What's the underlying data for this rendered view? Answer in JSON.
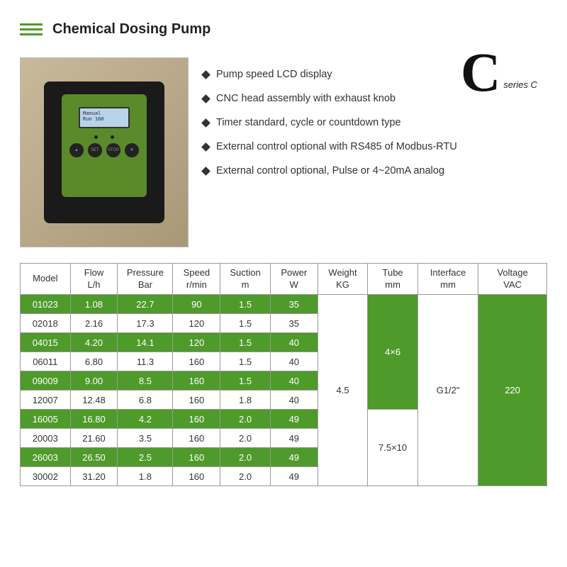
{
  "accentColor": "#4e9a2a",
  "header": {
    "title": "Chemical Dosing Pump"
  },
  "pump": {
    "lcd_line1": "Manual",
    "lcd_line2": "Run 160"
  },
  "series": {
    "letter": "C",
    "label": "series C"
  },
  "features": [
    "Pump speed LCD display",
    "CNC head assembly with exhaust knob",
    "Timer  standard, cycle or countdown type",
    "External control optional with RS485 of Modbus-RTU",
    "External control optional, Pulse or 4~20mA analog"
  ],
  "table": {
    "columns": [
      {
        "l1": "Model",
        "l2": ""
      },
      {
        "l1": "Flow",
        "l2": "L/h"
      },
      {
        "l1": "Pressure",
        "l2": "Bar"
      },
      {
        "l1": "Speed",
        "l2": "r/min"
      },
      {
        "l1": "Suction",
        "l2": "m"
      },
      {
        "l1": "Power",
        "l2": "W"
      },
      {
        "l1": "Weight",
        "l2": "KG"
      },
      {
        "l1": "Tube",
        "l2": "mm"
      },
      {
        "l1": "Interface",
        "l2": "mm"
      },
      {
        "l1": "Voltage",
        "l2": "VAC"
      }
    ],
    "col_widths": [
      "9.5%",
      "9%",
      "10.5%",
      "9%",
      "9.5%",
      "9%",
      "9.5%",
      "9.5%",
      "11.5%",
      "13%"
    ],
    "rows": [
      {
        "green": true,
        "c": [
          "01023",
          "1.08",
          "22.7",
          "90",
          "1.5",
          "35"
        ]
      },
      {
        "green": false,
        "c": [
          "02018",
          "2.16",
          "17.3",
          "120",
          "1.5",
          "35"
        ]
      },
      {
        "green": true,
        "c": [
          "04015",
          "4.20",
          "14.1",
          "120",
          "1.5",
          "40"
        ]
      },
      {
        "green": false,
        "c": [
          "06011",
          "6.80",
          "11.3",
          "160",
          "1.5",
          "40"
        ]
      },
      {
        "green": true,
        "c": [
          "09009",
          "9.00",
          "8.5",
          "160",
          "1.5",
          "40"
        ]
      },
      {
        "green": false,
        "c": [
          "12007",
          "12.48",
          "6.8",
          "160",
          "1.8",
          "40"
        ]
      },
      {
        "green": true,
        "c": [
          "16005",
          "16.80",
          "4.2",
          "160",
          "2.0",
          "49"
        ]
      },
      {
        "green": false,
        "c": [
          "20003",
          "21.60",
          "3.5",
          "160",
          "2.0",
          "49"
        ]
      },
      {
        "green": true,
        "c": [
          "26003",
          "26.50",
          "2.5",
          "160",
          "2.0",
          "49"
        ]
      },
      {
        "green": false,
        "c": [
          "30002",
          "31.20",
          "1.8",
          "160",
          "2.0",
          "49"
        ]
      }
    ],
    "merged": {
      "weight": "4.5",
      "tube1": "4×6",
      "tube2": "7.5×10",
      "interface": "G1/2\"",
      "voltage": "220"
    }
  }
}
